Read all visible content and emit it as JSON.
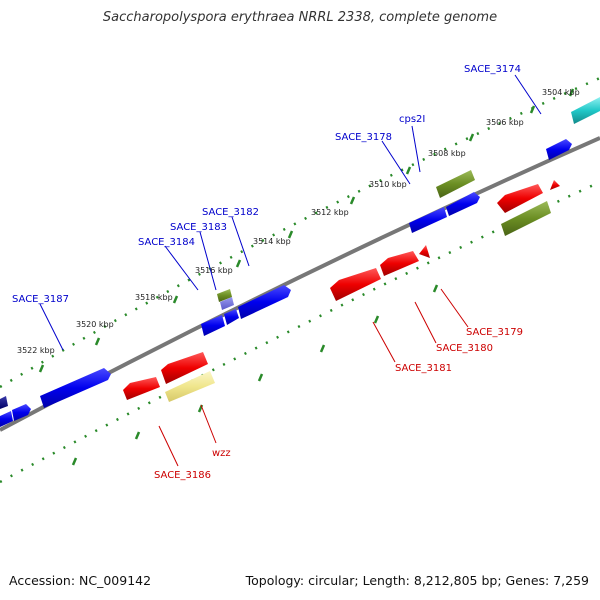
{
  "title": "Saccharopolyspora erythraea NRRL 2338, complete genome",
  "footer": {
    "accession": "Accession: NC_009142",
    "stats": "Topology: circular; Length: 8,212,805 bp; Genes: 7,259"
  },
  "ticks": [
    {
      "label": "3504 kbp"
    },
    {
      "label": "3506 kbp"
    },
    {
      "label": "3508 kbp"
    },
    {
      "label": "3510 kbp"
    },
    {
      "label": "3512 kbp"
    },
    {
      "label": "3514 kbp"
    },
    {
      "label": "3516 kbp"
    },
    {
      "label": "3518 kbp"
    },
    {
      "label": "3520 kbp"
    },
    {
      "label": "3522 kbp"
    }
  ],
  "gene_labels": [
    {
      "label": "SACE_3174",
      "color": "#0000cc"
    },
    {
      "label": "cps2I",
      "color": "#0000cc"
    },
    {
      "label": "SACE_3178",
      "color": "#0000cc"
    },
    {
      "label": "SACE_3182",
      "color": "#0000cc"
    },
    {
      "label": "SACE_3183",
      "color": "#0000cc"
    },
    {
      "label": "SACE_3184",
      "color": "#0000cc"
    },
    {
      "label": "SACE_3187",
      "color": "#0000cc"
    },
    {
      "label": "SACE_3179",
      "color": "#cc0000"
    },
    {
      "label": "SACE_3180",
      "color": "#cc0000"
    },
    {
      "label": "SACE_3181",
      "color": "#cc0000"
    },
    {
      "label": "wzz",
      "color": "#cc0000"
    },
    {
      "label": "SACE_3186",
      "color": "#cc0000"
    }
  ],
  "colors": {
    "backbone": "#777777",
    "tick_track": "#2a8a2a",
    "forward_gene": "#0000ee",
    "reverse_gene": "#ee0000",
    "cyan_gene": "#20c8c8",
    "olive_gene": "#6b8e23",
    "pale_gene": "#f0e68c"
  }
}
